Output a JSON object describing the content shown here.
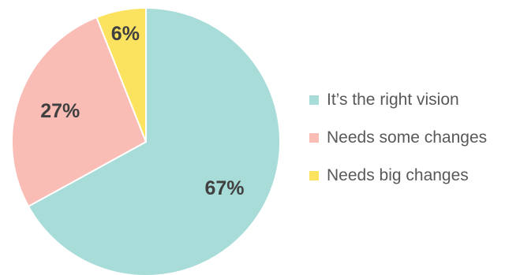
{
  "chart_data": {
    "type": "pie",
    "categories": [
      "It’s the right vision",
      "Needs some changes",
      "Needs big changes"
    ],
    "values": [
      67,
      27,
      6
    ],
    "value_labels": [
      "67%",
      "27%",
      "6%"
    ],
    "colors": [
      "#a8dcd8",
      "#f9bdb5",
      "#fbe25f"
    ],
    "title": "",
    "legend_placement": "right",
    "start_angle_degrees": 0,
    "direction": "clockwise"
  }
}
